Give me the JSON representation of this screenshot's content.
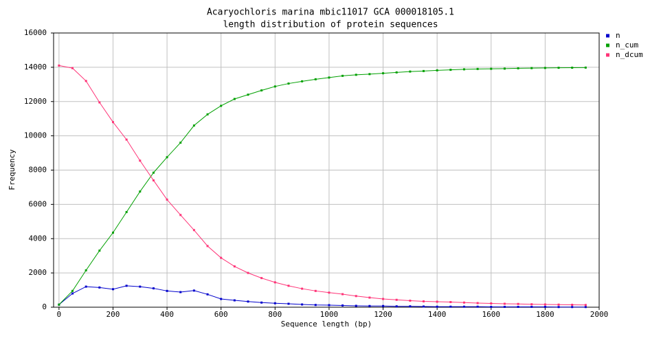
{
  "chart_data": {
    "type": "line",
    "title": "Acaryochloris marina mbic11017 GCA 000018105.1",
    "subtitle": "length distribution of protein sequences",
    "x_label": "Sequence length (bp)",
    "y_label": "Frequency",
    "x": [
      0,
      50,
      100,
      150,
      200,
      250,
      300,
      350,
      400,
      450,
      500,
      550,
      600,
      650,
      700,
      750,
      800,
      850,
      900,
      950,
      1000,
      1050,
      1100,
      1150,
      1200,
      1250,
      1300,
      1350,
      1400,
      1450,
      1500,
      1550,
      1600,
      1650,
      1700,
      1750,
      1800,
      1850,
      1900,
      1950
    ],
    "series": [
      {
        "name": "n",
        "color": "#0000cc",
        "values": [
          150,
          800,
          1200,
          1150,
          1050,
          1250,
          1200,
          1100,
          950,
          880,
          970,
          750,
          480,
          400,
          330,
          270,
          230,
          200,
          160,
          130,
          120,
          100,
          80,
          70,
          70,
          50,
          50,
          40,
          30,
          30,
          30,
          30,
          20,
          20,
          20,
          20,
          20,
          10,
          10,
          10
        ]
      },
      {
        "name": "n_cum",
        "color": "#00a000",
        "values": [
          150,
          950,
          2150,
          3300,
          4350,
          5550,
          6750,
          7850,
          8750,
          9600,
          10600,
          11250,
          11750,
          12150,
          12400,
          12650,
          12880,
          13050,
          13180,
          13300,
          13400,
          13500,
          13560,
          13600,
          13650,
          13700,
          13750,
          13780,
          13820,
          13850,
          13880,
          13900,
          13910,
          13920,
          13940,
          13950,
          13960,
          13970,
          13975,
          13980
        ]
      },
      {
        "name": "n_dcum",
        "color": "#ff3377",
        "values": [
          14100,
          13950,
          13200,
          11950,
          10800,
          9780,
          8550,
          7400,
          6280,
          5380,
          4500,
          3570,
          2880,
          2380,
          2000,
          1700,
          1450,
          1250,
          1080,
          950,
          850,
          760,
          650,
          560,
          480,
          430,
          380,
          340,
          320,
          300,
          270,
          240,
          220,
          200,
          190,
          170,
          160,
          150,
          140,
          130
        ]
      }
    ],
    "xlim": [
      -20,
      2000
    ],
    "ylim": [
      0,
      16000
    ],
    "xticks": [
      0,
      200,
      400,
      600,
      800,
      1000,
      1200,
      1400,
      1600,
      1800,
      2000
    ],
    "yticks": [
      0,
      2000,
      4000,
      6000,
      8000,
      10000,
      12000,
      14000,
      16000
    ],
    "grid": true,
    "legend": "top-right"
  }
}
